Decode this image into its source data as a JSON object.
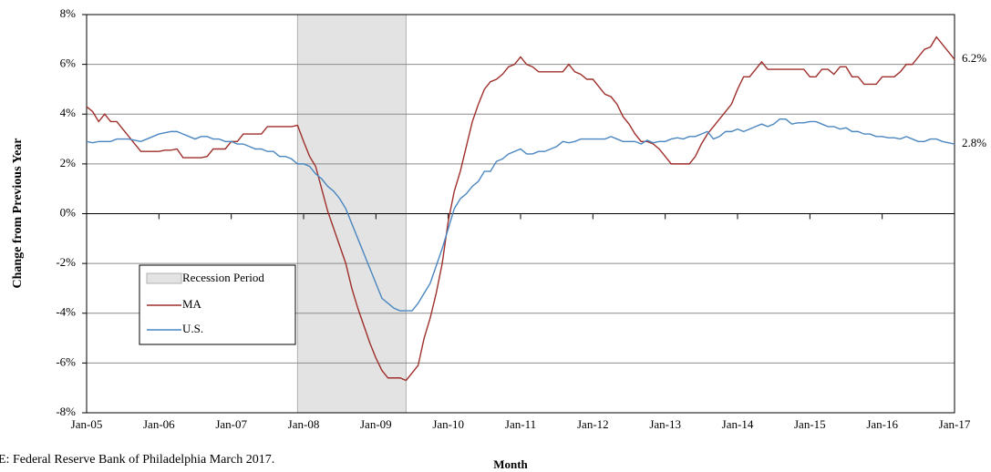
{
  "chart_data": {
    "type": "line",
    "y_label": "Change from Previous Year",
    "x_label": "Month",
    "source": "E: Federal Reserve Bank of Philadelphia March 2017.",
    "categories": [
      "Jan-05",
      null,
      null,
      null,
      null,
      null,
      null,
      null,
      null,
      null,
      null,
      null,
      "Jan-06",
      null,
      null,
      null,
      null,
      null,
      null,
      null,
      null,
      null,
      null,
      null,
      "Jan-07",
      null,
      null,
      null,
      null,
      null,
      null,
      null,
      null,
      null,
      null,
      null,
      "Jan-08",
      null,
      null,
      null,
      null,
      null,
      null,
      null,
      null,
      null,
      null,
      null,
      "Jan-09",
      null,
      null,
      null,
      null,
      null,
      null,
      null,
      null,
      null,
      null,
      null,
      "Jan-10",
      null,
      null,
      null,
      null,
      null,
      null,
      null,
      null,
      null,
      null,
      null,
      "Jan-11",
      null,
      null,
      null,
      null,
      null,
      null,
      null,
      null,
      null,
      null,
      null,
      "Jan-12",
      null,
      null,
      null,
      null,
      null,
      null,
      null,
      null,
      null,
      null,
      null,
      "Jan-13",
      null,
      null,
      null,
      null,
      null,
      null,
      null,
      null,
      null,
      null,
      null,
      "Jan-14",
      null,
      null,
      null,
      null,
      null,
      null,
      null,
      null,
      null,
      null,
      null,
      "Jan-15",
      null,
      null,
      null,
      null,
      null,
      null,
      null,
      null,
      null,
      null,
      null,
      "Jan-16",
      null,
      null,
      null,
      null,
      null,
      null,
      null,
      null,
      null,
      null,
      null,
      "Jan-17"
    ],
    "shaded_period": {
      "name": "Recession Period",
      "color": "#e3e3e3",
      "from_index": 35,
      "to_index": 53
    },
    "series": [
      {
        "name": "MA",
        "color": "#9e2f2b",
        "end_label": "6.2%",
        "values": [
          4.3,
          4.1,
          3.7,
          4.0,
          3.7,
          3.7,
          3.4,
          3.1,
          2.8,
          2.5,
          2.5,
          2.5,
          2.5,
          2.55,
          2.55,
          2.6,
          2.25,
          2.25,
          2.25,
          2.25,
          2.3,
          2.6,
          2.6,
          2.6,
          2.9,
          2.9,
          3.2,
          3.2,
          3.2,
          3.2,
          3.5,
          3.5,
          3.5,
          3.5,
          3.5,
          3.55,
          2.9,
          2.3,
          1.9,
          1.0,
          0.1,
          -0.6,
          -1.3,
          -2.0,
          -3.0,
          -3.8,
          -4.5,
          -5.2,
          -5.8,
          -6.3,
          -6.6,
          -6.6,
          -6.6,
          -6.7,
          -6.4,
          -6.1,
          -5.0,
          -4.2,
          -3.2,
          -2.0,
          -0.3,
          0.9,
          1.7,
          2.7,
          3.7,
          4.4,
          5.0,
          5.3,
          5.4,
          5.6,
          5.9,
          6.0,
          6.3,
          6.0,
          5.9,
          5.7,
          5.7,
          5.7,
          5.7,
          5.7,
          6.0,
          5.7,
          5.6,
          5.4,
          5.4,
          5.1,
          4.8,
          4.7,
          4.4,
          3.9,
          3.6,
          3.2,
          2.9,
          2.9,
          2.8,
          2.6,
          2.3,
          2.0,
          2.0,
          2.0,
          2.0,
          2.3,
          2.8,
          3.2,
          3.5,
          3.8,
          4.1,
          4.4,
          5.0,
          5.5,
          5.5,
          5.8,
          6.1,
          5.8,
          5.8,
          5.8,
          5.8,
          5.8,
          5.8,
          5.8,
          5.5,
          5.5,
          5.8,
          5.8,
          5.6,
          5.9,
          5.9,
          5.5,
          5.5,
          5.2,
          5.2,
          5.2,
          5.5,
          5.5,
          5.5,
          5.7,
          6.0,
          6.0,
          6.3,
          6.6,
          6.7,
          7.1,
          6.8,
          6.5,
          6.2
        ]
      },
      {
        "name": "U.S.",
        "color": "#4a86c0",
        "end_label": "2.8%",
        "values": [
          2.9,
          2.85,
          2.9,
          2.9,
          2.9,
          3.0,
          3.0,
          3.0,
          2.95,
          2.9,
          3.0,
          3.1,
          3.2,
          3.25,
          3.3,
          3.3,
          3.2,
          3.1,
          3.0,
          3.1,
          3.1,
          3.0,
          3.0,
          2.9,
          2.9,
          2.8,
          2.8,
          2.7,
          2.6,
          2.6,
          2.5,
          2.5,
          2.3,
          2.3,
          2.2,
          2.0,
          2.0,
          1.9,
          1.6,
          1.4,
          1.1,
          0.9,
          0.6,
          0.2,
          -0.4,
          -1.0,
          -1.6,
          -2.2,
          -2.8,
          -3.4,
          -3.6,
          -3.8,
          -3.9,
          -3.9,
          -3.9,
          -3.6,
          -3.2,
          -2.8,
          -2.1,
          -1.4,
          -0.6,
          0.2,
          0.6,
          0.8,
          1.1,
          1.3,
          1.7,
          1.7,
          2.1,
          2.2,
          2.4,
          2.5,
          2.6,
          2.4,
          2.4,
          2.5,
          2.5,
          2.6,
          2.7,
          2.9,
          2.85,
          2.9,
          3.0,
          3.0,
          3.0,
          3.0,
          3.0,
          3.1,
          3.0,
          2.9,
          2.9,
          2.9,
          2.8,
          2.95,
          2.85,
          2.9,
          2.9,
          3.0,
          3.05,
          3.0,
          3.1,
          3.1,
          3.2,
          3.3,
          3.0,
          3.1,
          3.3,
          3.3,
          3.4,
          3.3,
          3.4,
          3.5,
          3.6,
          3.5,
          3.6,
          3.8,
          3.8,
          3.6,
          3.65,
          3.65,
          3.7,
          3.7,
          3.6,
          3.5,
          3.5,
          3.4,
          3.45,
          3.3,
          3.3,
          3.2,
          3.2,
          3.1,
          3.1,
          3.05,
          3.05,
          3.0,
          3.1,
          3.0,
          2.9,
          2.9,
          3.0,
          3.0,
          2.9,
          2.85,
          2.8
        ]
      }
    ],
    "ylim": [
      -8,
      8
    ],
    "yticks": [
      {
        "value": -8,
        "label": "-8%"
      },
      {
        "value": -6,
        "label": "-6%"
      },
      {
        "value": -4,
        "label": "-4%"
      },
      {
        "value": -2,
        "label": "-2%"
      },
      {
        "value": 0,
        "label": "0%"
      },
      {
        "value": 2,
        "label": "2%"
      },
      {
        "value": 4,
        "label": "4%"
      },
      {
        "value": 6,
        "label": "6%"
      },
      {
        "value": 8,
        "label": "8%"
      }
    ],
    "grid": true,
    "legend": "lower left"
  }
}
